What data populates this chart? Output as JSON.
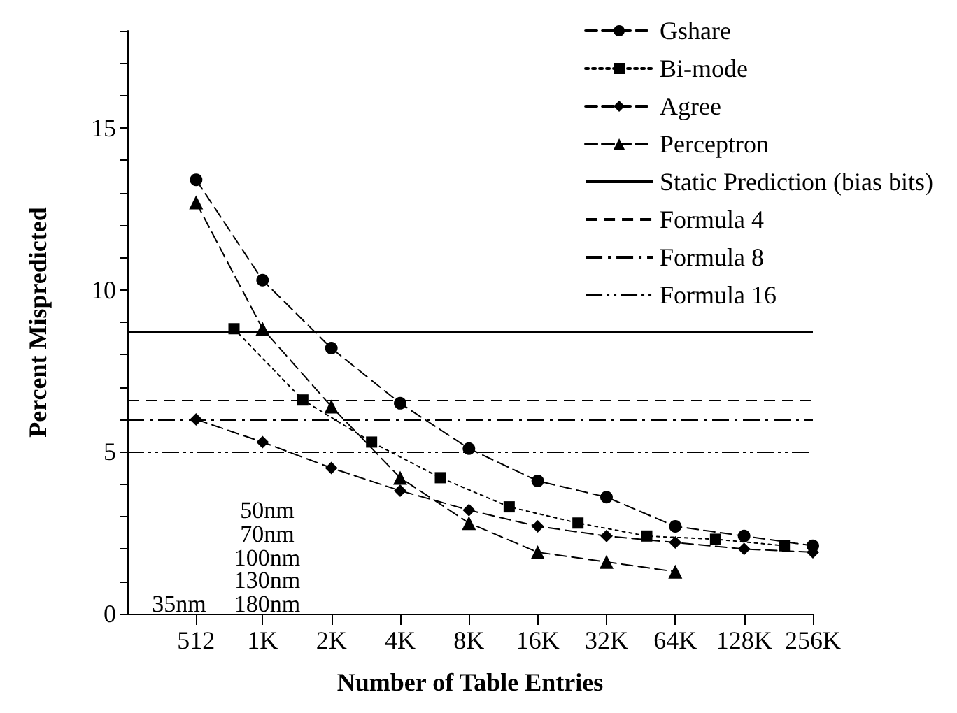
{
  "chart_data": {
    "type": "line",
    "xlabel": "Number of Table Entries",
    "ylabel": "Percent Mispredicted",
    "log": "x",
    "xlim": [
      256,
      256000
    ],
    "xticks": [
      {
        "value": 512,
        "label": "512"
      },
      {
        "value": 1000,
        "label": "1K"
      },
      {
        "value": 2000,
        "label": "2K"
      },
      {
        "value": 4000,
        "label": "4K"
      },
      {
        "value": 8000,
        "label": "8K"
      },
      {
        "value": 16000,
        "label": "16K"
      },
      {
        "value": 32000,
        "label": "32K"
      },
      {
        "value": 64000,
        "label": "64K"
      },
      {
        "value": 128000,
        "label": "128K"
      },
      {
        "value": 256000,
        "label": "256K"
      }
    ],
    "ylim": [
      0,
      18
    ],
    "yticks": [
      0,
      {
        "value": 1,
        "label": null
      },
      {
        "value": 2,
        "label": null
      },
      {
        "value": 3,
        "label": null
      },
      {
        "value": 4,
        "label": null
      },
      5,
      {
        "value": 6,
        "label": null
      },
      {
        "value": 7,
        "label": null
      },
      {
        "value": 8,
        "label": null
      },
      {
        "value": 9,
        "label": null
      },
      10,
      {
        "value": 11,
        "label": null
      },
      {
        "value": 12,
        "label": null
      },
      {
        "value": 13,
        "label": null
      },
      {
        "value": 14,
        "label": null
      },
      15,
      {
        "value": 16,
        "label": null
      },
      {
        "value": 17,
        "label": null
      },
      {
        "value": 18,
        "label": null
      }
    ],
    "grid": false,
    "legend": "top right",
    "series": [
      {
        "name": "Gshare",
        "color": "#000000",
        "marker": "circle",
        "line_style": "dashed",
        "x": [
          512,
          1000,
          2000,
          4000,
          8000,
          16000,
          32000,
          64000,
          128000,
          256000
        ],
        "values": [
          13.4,
          10.3,
          8.2,
          6.5,
          5.1,
          4.1,
          3.6,
          2.7,
          2.4,
          2.1
        ]
      },
      {
        "name": "Bi-mode",
        "color": "#000000",
        "marker": "square",
        "line_style": "dotted",
        "x": [
          750,
          1500,
          3000,
          6000,
          12000,
          24000,
          48000,
          96000,
          192000
        ],
        "values": [
          8.8,
          6.6,
          5.3,
          4.2,
          3.3,
          2.8,
          2.4,
          2.3,
          2.1
        ]
      },
      {
        "name": "Agree",
        "color": "#000000",
        "marker": "diamond",
        "line_style": "dashed",
        "x": [
          512,
          1000,
          2000,
          4000,
          8000,
          16000,
          32000,
          64000,
          128000,
          256000
        ],
        "values": [
          6.0,
          5.3,
          4.5,
          3.8,
          3.2,
          2.7,
          2.4,
          2.2,
          2.0,
          1.9
        ]
      },
      {
        "name": "Perceptron",
        "color": "#000000",
        "marker": "triangle",
        "line_style": "dashed",
        "x": [
          512,
          1000,
          2000,
          4000,
          8000,
          16000,
          32000,
          64000
        ],
        "values": [
          12.7,
          8.8,
          6.4,
          4.2,
          2.8,
          1.9,
          1.6,
          1.3
        ]
      }
    ],
    "ref_lines": [
      {
        "axis": "y",
        "value": 8.7,
        "label": "Static Prediction (bias bits)",
        "color": "#000000",
        "line_style": "solid"
      },
      {
        "axis": "y",
        "value": 6.6,
        "label": "Formula 4",
        "color": "#000000",
        "line_style": "dashed"
      },
      {
        "axis": "y",
        "value": 6.0,
        "label": "Formula 8",
        "color": "#000000",
        "line_style": "dashed"
      },
      {
        "axis": "y",
        "value": 5.0,
        "label": "Formula 16",
        "color": "#000000",
        "line_style": "dashed"
      }
    ],
    "annotations": [
      "50nm",
      "70nm",
      "100nm",
      "130nm",
      "180nm",
      "35nm"
    ]
  }
}
